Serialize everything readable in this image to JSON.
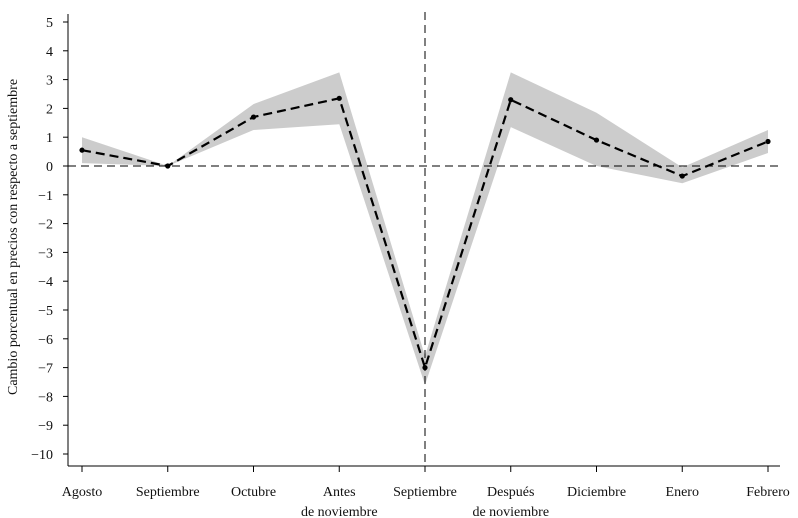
{
  "chart_data": {
    "type": "line",
    "title": "",
    "xlabel": "",
    "ylabel": "Cambio porcentual en precios con respecto a septiembre",
    "categories": [
      [
        "Agosto"
      ],
      [
        "Septiembre"
      ],
      [
        "Octubre"
      ],
      [
        "Antes",
        "de noviembre"
      ],
      [
        "Septiembre"
      ],
      [
        "Después",
        "de noviembre"
      ],
      [
        "Diciembre"
      ],
      [
        "Enero"
      ],
      [
        "Febrero"
      ]
    ],
    "series": [
      {
        "values": [
          0.55,
          0.0,
          1.7,
          2.35,
          -7.0,
          2.3,
          0.9,
          -0.35,
          0.85
        ],
        "band_upper": [
          1.0,
          0.0,
          2.15,
          3.25,
          -6.6,
          3.25,
          1.85,
          -0.05,
          1.25
        ],
        "band_lower": [
          0.1,
          0.0,
          1.25,
          1.45,
          -7.6,
          1.35,
          0.0,
          -0.6,
          0.45
        ]
      }
    ],
    "ylim": [
      -10.5,
      5.5
    ],
    "yticks": [
      5,
      4,
      3,
      2,
      1,
      0,
      -1,
      -2,
      -3,
      -4,
      -5,
      -6,
      -7,
      -8,
      -9,
      -10
    ],
    "ytick_labels": [
      "5",
      "4",
      "3",
      "2",
      "1",
      "0",
      "−1",
      "−2",
      "−3",
      "−4",
      "−5",
      "−6",
      "−7",
      "−8",
      "−9",
      "−10"
    ],
    "reference_line_y": 0,
    "reference_line_x_category_index": 4,
    "grid": false,
    "legend": false,
    "colors": {
      "line": "#000000",
      "band": "#cccccc",
      "axis": "#000000"
    }
  }
}
